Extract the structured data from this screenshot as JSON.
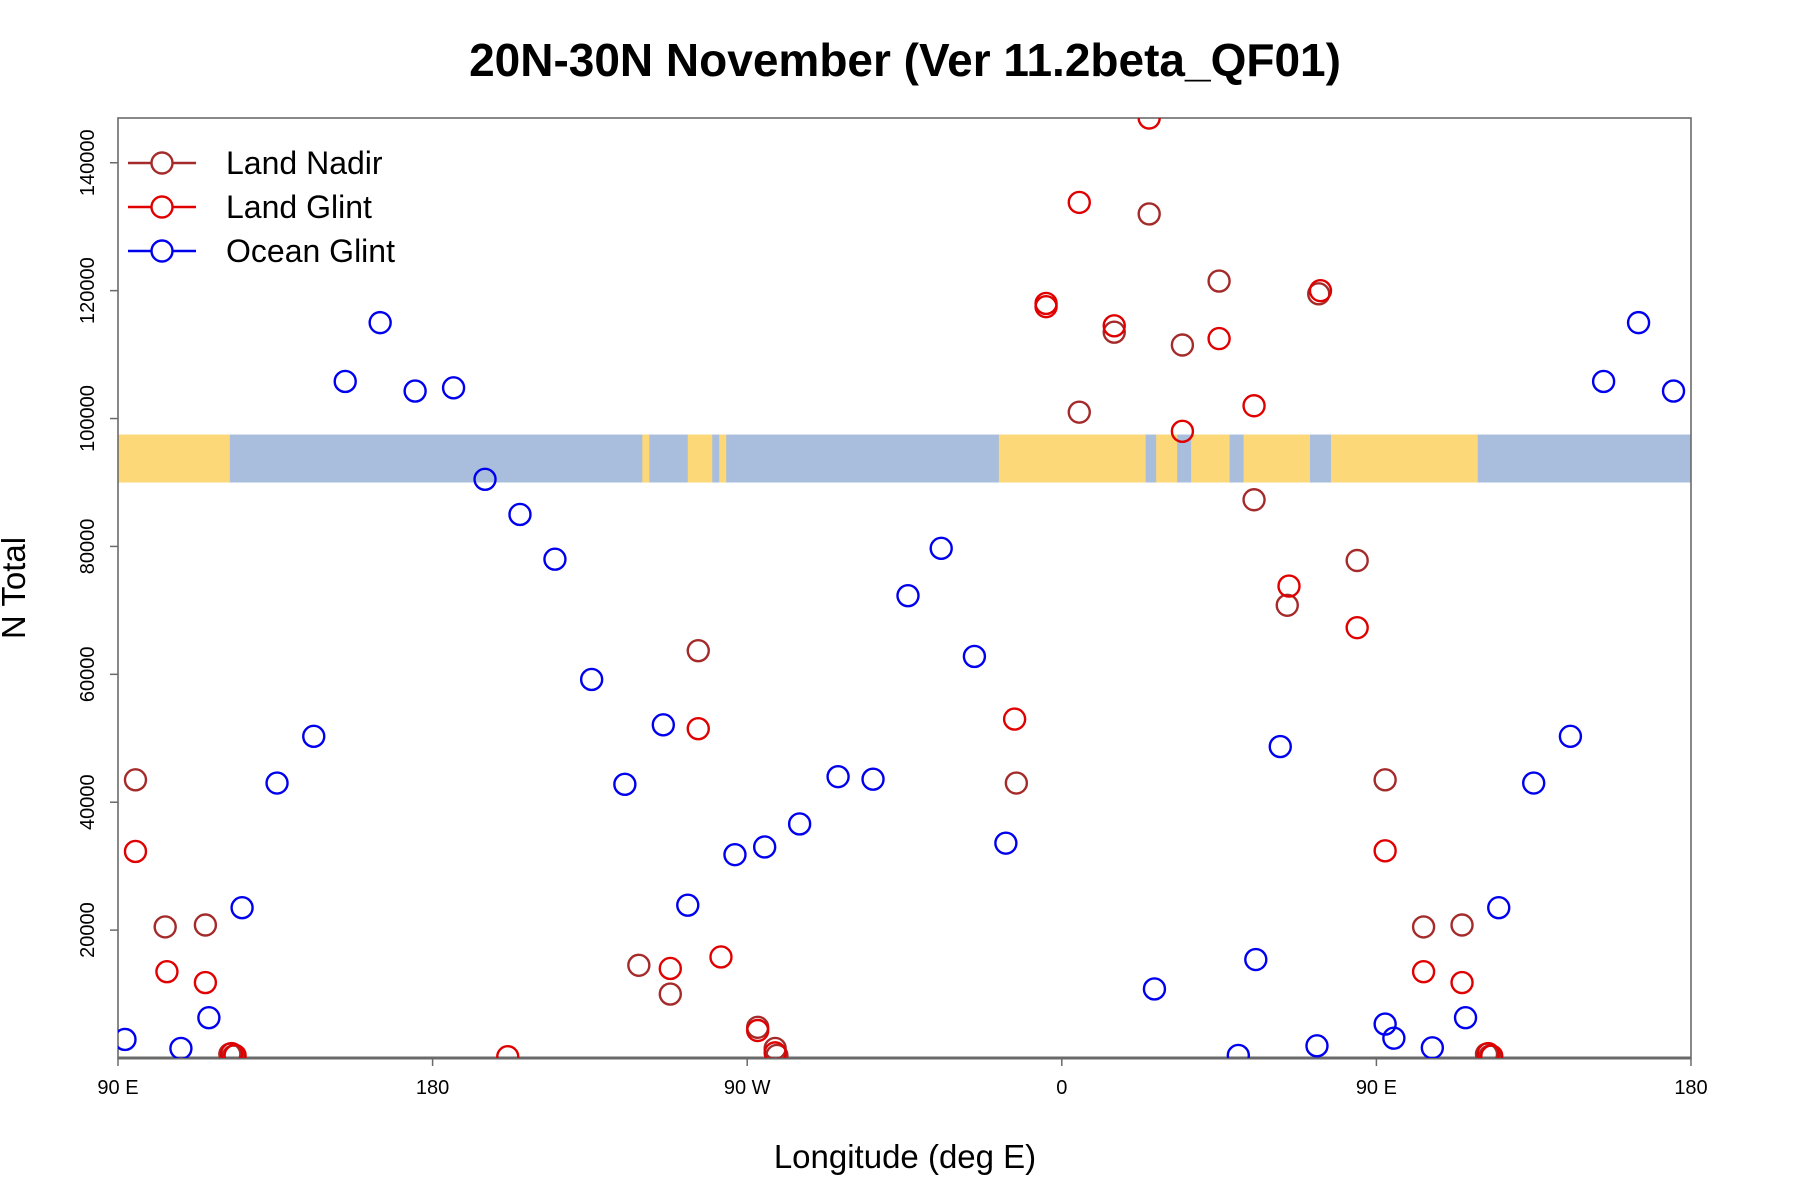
{
  "chart_data": {
    "type": "scatter",
    "title": "20N-30N November (Ver 11.2beta_QF01)",
    "xlabel": "Longitude (deg E)",
    "ylabel": "N Total",
    "xlim": [
      90,
      540
    ],
    "ylim": [
      0,
      147000
    ],
    "x_ticks": [
      {
        "value": 90,
        "label": "90 E"
      },
      {
        "value": 180,
        "label": "180"
      },
      {
        "value": 270,
        "label": "90 W"
      },
      {
        "value": 360,
        "label": "0"
      },
      {
        "value": 450,
        "label": "90 E"
      },
      {
        "value": 540,
        "label": "180"
      }
    ],
    "y_ticks": [
      {
        "value": 20000,
        "label": "20000"
      },
      {
        "value": 40000,
        "label": "40000"
      },
      {
        "value": 60000,
        "label": "60000"
      },
      {
        "value": 80000,
        "label": "80000"
      },
      {
        "value": 100000,
        "label": "100000"
      },
      {
        "value": 120000,
        "label": "120000"
      },
      {
        "value": 140000,
        "label": "140000"
      }
    ],
    "map_strip": {
      "y_range": [
        90000,
        97500
      ],
      "ocean_color": "#a8bedc",
      "land_color": "#fdd878"
    },
    "legend_position": "top-left",
    "series": [
      {
        "name": "Land Nadir",
        "color": "#a52a2a",
        "points": [
          [
            95,
            43500
          ],
          [
            103.5,
            20500
          ],
          [
            115,
            20800
          ],
          [
            122,
            600
          ],
          [
            123,
            300
          ],
          [
            248,
            10000
          ],
          [
            256,
            63700
          ],
          [
            239,
            14500
          ],
          [
            273,
            4800
          ],
          [
            278,
            1500
          ],
          [
            278.5,
            400
          ],
          [
            347,
            43000
          ],
          [
            365,
            101000
          ],
          [
            375,
            113500
          ],
          [
            385,
            132000
          ],
          [
            394.5,
            111500
          ],
          [
            405,
            121500
          ],
          [
            415,
            87300
          ],
          [
            424.5,
            70800
          ],
          [
            433.5,
            119500
          ],
          [
            444.5,
            77800
          ],
          [
            452.5,
            43500
          ],
          [
            463.5,
            20500
          ],
          [
            474.5,
            20800
          ],
          [
            481.5,
            600
          ],
          [
            482.5,
            300
          ]
        ]
      },
      {
        "name": "Land Glint",
        "color": "#e00000",
        "points": [
          [
            95,
            32300
          ],
          [
            104,
            13500
          ],
          [
            115,
            11800
          ],
          [
            122.5,
            700
          ],
          [
            123.5,
            400
          ],
          [
            201.5,
            200
          ],
          [
            248,
            14000
          ],
          [
            256,
            51500
          ],
          [
            262.5,
            15800
          ],
          [
            273,
            4300
          ],
          [
            278,
            800
          ],
          [
            346.5,
            53000
          ],
          [
            355.5,
            118000
          ],
          [
            355.5,
            117500
          ],
          [
            365,
            133800
          ],
          [
            375,
            114500
          ],
          [
            385,
            147000
          ],
          [
            394.5,
            98000
          ],
          [
            405,
            112500
          ],
          [
            415,
            102000
          ],
          [
            425,
            73800
          ],
          [
            434,
            120000
          ],
          [
            444.5,
            67300
          ],
          [
            452.5,
            32400
          ],
          [
            463.5,
            13500
          ],
          [
            474.5,
            11800
          ],
          [
            482,
            700
          ],
          [
            483,
            300
          ]
        ]
      },
      {
        "name": "Ocean Glint",
        "color": "#0000ee",
        "points": [
          [
            92,
            2900
          ],
          [
            108,
            1500
          ],
          [
            116,
            6300
          ],
          [
            125.5,
            23500
          ],
          [
            135.5,
            43000
          ],
          [
            146,
            50300
          ],
          [
            155,
            105800
          ],
          [
            165,
            115000
          ],
          [
            175,
            104300
          ],
          [
            186,
            104800
          ],
          [
            195,
            90500
          ],
          [
            205,
            85000
          ],
          [
            215,
            78000
          ],
          [
            225.5,
            59200
          ],
          [
            235,
            42800
          ],
          [
            246,
            52100
          ],
          [
            253,
            23900
          ],
          [
            266.5,
            31800
          ],
          [
            275,
            33000
          ],
          [
            285,
            36600
          ],
          [
            296,
            44000
          ],
          [
            306,
            43600
          ],
          [
            316,
            72300
          ],
          [
            325.5,
            79700
          ],
          [
            335,
            62800
          ],
          [
            344,
            33600
          ],
          [
            386.5,
            10800
          ],
          [
            410.5,
            400
          ],
          [
            415.5,
            15400
          ],
          [
            422.5,
            48700
          ],
          [
            433,
            1900
          ],
          [
            452.5,
            5300
          ],
          [
            455,
            3100
          ],
          [
            466,
            1600
          ],
          [
            475.5,
            6300
          ],
          [
            485,
            23500
          ],
          [
            495,
            43000
          ],
          [
            505.5,
            50300
          ],
          [
            515,
            105800
          ],
          [
            525,
            115000
          ],
          [
            535,
            104300
          ]
        ]
      }
    ]
  }
}
